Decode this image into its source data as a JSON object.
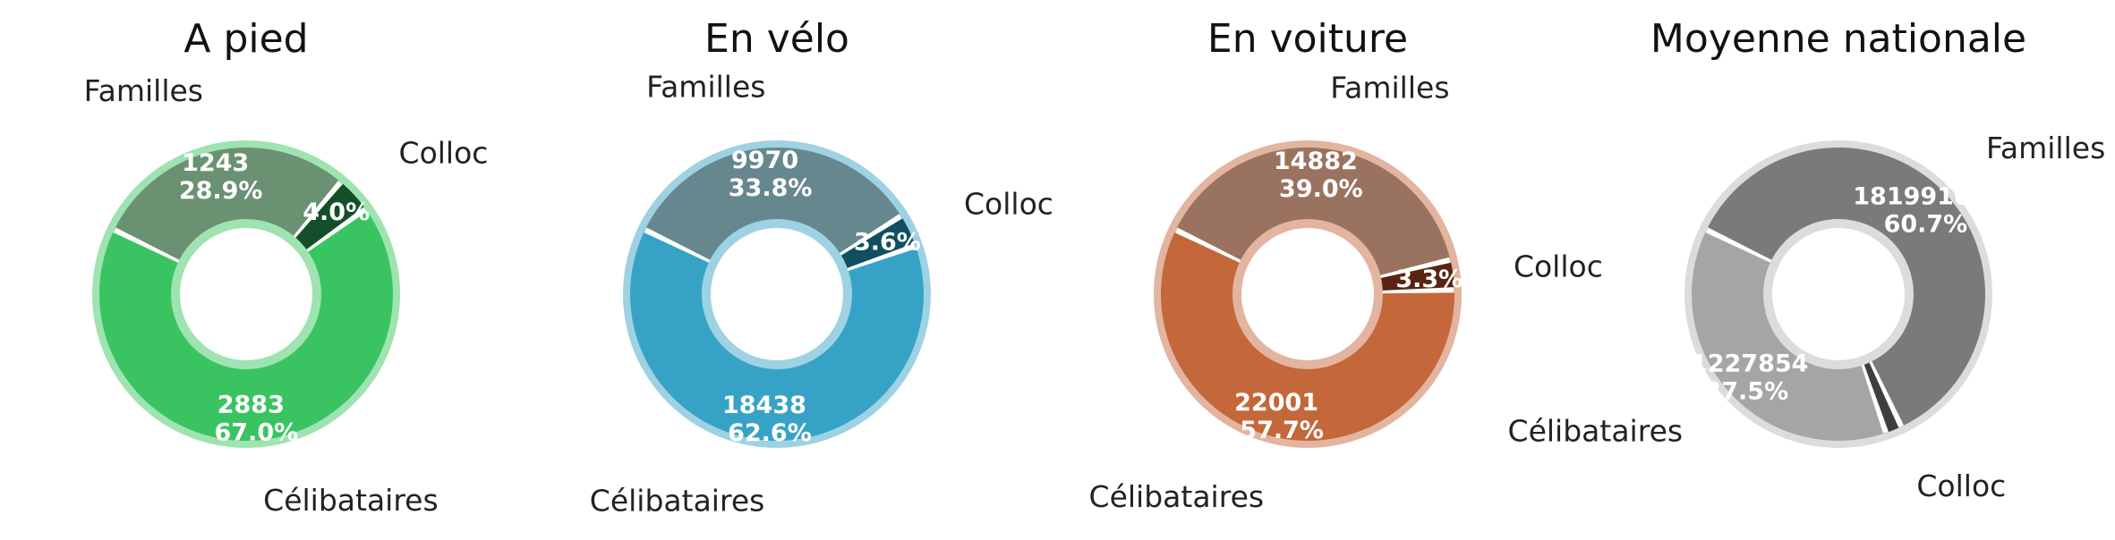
{
  "chart_data": [
    {
      "type": "pie",
      "title": "A pied",
      "categories": [
        "Célibataires",
        "Colloc",
        "Familles"
      ],
      "values": [
        2883,
        172,
        1243
      ],
      "value_labels": [
        "2883",
        "",
        "1243"
      ],
      "percent_labels": [
        "67.0%",
        "4.0%",
        "28.9%"
      ],
      "colors": [
        "#3ac461",
        "#13502a",
        "#6a9172"
      ],
      "ring_color": "#9ee3b0"
    },
    {
      "type": "pie",
      "title": "En vélo",
      "categories": [
        "Célibataires",
        "Colloc",
        "Familles"
      ],
      "values": [
        18438,
        1060,
        9970
      ],
      "value_labels": [
        "18438",
        "",
        "9970"
      ],
      "percent_labels": [
        "62.6%",
        "3.6%",
        "33.8%"
      ],
      "colors": [
        "#36a3c6",
        "#0f4f60",
        "#66878e"
      ],
      "ring_color": "#9ed2e3"
    },
    {
      "type": "pie",
      "title": "En voiture",
      "categories": [
        "Célibataires",
        "Colloc",
        "Familles"
      ],
      "values": [
        22001,
        1258,
        14882
      ],
      "value_labels": [
        "22001",
        "",
        "14882"
      ],
      "percent_labels": [
        "57.7%",
        "3.3%",
        "39.0%"
      ],
      "colors": [
        "#c4673a",
        "#5a2412",
        "#9a7260"
      ],
      "ring_color": "#e3b4a0"
    },
    {
      "type": "pie",
      "title": "Moyenne nationale",
      "categories": [
        "Célibataires",
        "Colloc",
        "Familles"
      ],
      "values": [
        11227854,
        540000,
        18199105
      ],
      "value_labels": [
        "11227854",
        "",
        "18199105"
      ],
      "percent_labels": [
        "37.5%",
        "",
        "60.7%"
      ],
      "colors": [
        "#a5a5a5",
        "#3e3e3e",
        "#7a7a7a"
      ],
      "ring_color": "#dcdcdc"
    }
  ]
}
